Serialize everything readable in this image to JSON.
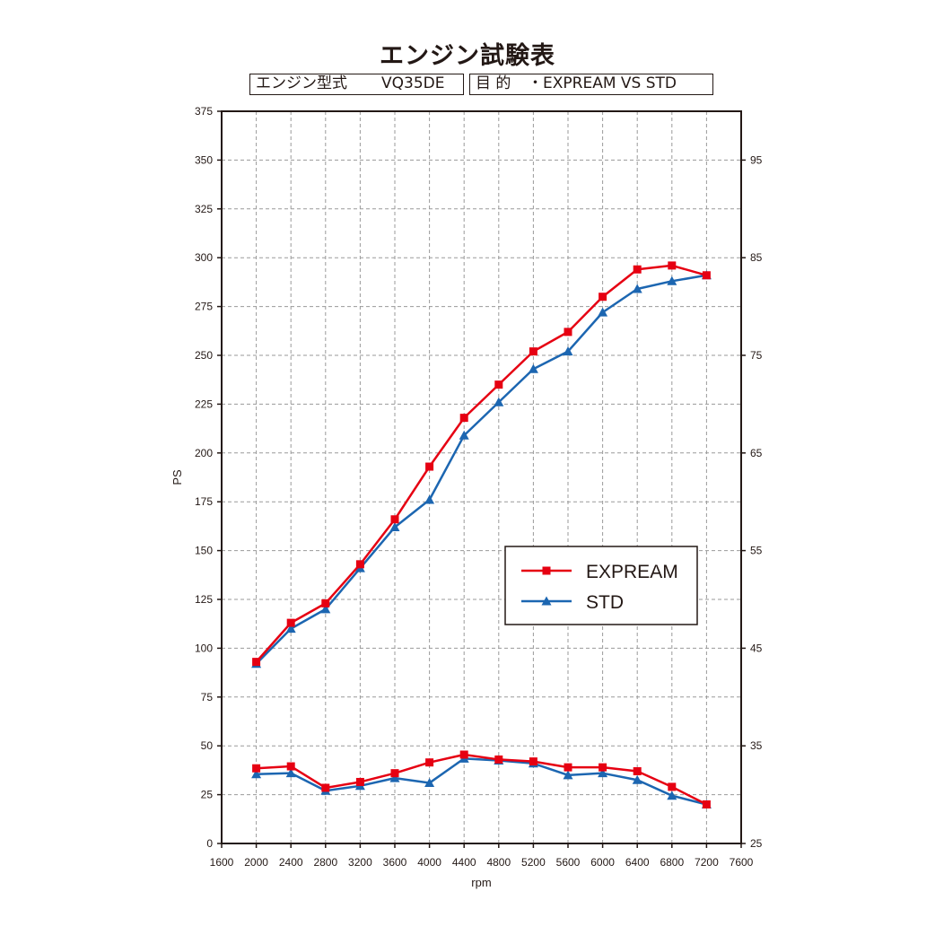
{
  "header": {
    "title": "エンジン試験表",
    "engine_label": "エンジン型式",
    "engine_value": "VQ35DE",
    "purpose_label": "目 的",
    "purpose_value": "・EXPREAM VS STD"
  },
  "colors": {
    "expream": "#e60012",
    "std": "#1c66b1",
    "grid": "#9a9a9a",
    "frame": "#231815"
  },
  "chart_data": {
    "type": "line",
    "xlabel": "rpm",
    "ylabel": "PS",
    "y2label": "",
    "xlim": [
      1600,
      7600
    ],
    "ylim": [
      0,
      375
    ],
    "y2lim": [
      25,
      100
    ],
    "grid": true,
    "legend_position": "right-middle",
    "x_ticks": [
      1600,
      2000,
      2400,
      2800,
      3200,
      3600,
      4000,
      4400,
      4800,
      5200,
      5600,
      6000,
      6400,
      6800,
      7200,
      7600
    ],
    "y_ticks": [
      0,
      25,
      50,
      75,
      100,
      125,
      150,
      175,
      200,
      225,
      250,
      275,
      300,
      325,
      350,
      375
    ],
    "y2_ticks": [
      25,
      35,
      45,
      55,
      65,
      75,
      85,
      95
    ],
    "x": [
      2000,
      2400,
      2800,
      3200,
      3600,
      4000,
      4400,
      4800,
      5200,
      5600,
      6000,
      6400,
      6800,
      7200
    ],
    "series": [
      {
        "name": "EXPREAM",
        "group": "power",
        "axis": "left",
        "marker": "square",
        "color": "#e60012",
        "values": [
          93,
          113,
          123,
          143,
          166,
          193,
          218,
          235,
          252,
          262,
          280,
          294,
          296,
          291
        ]
      },
      {
        "name": "STD",
        "group": "power",
        "axis": "left",
        "marker": "triangle",
        "color": "#1c66b1",
        "values": [
          92,
          110,
          120,
          141,
          162,
          176,
          209,
          226,
          243,
          252,
          272,
          284,
          288,
          291
        ]
      },
      {
        "name": "EXPREAM",
        "group": "torque",
        "axis": "right",
        "marker": "square",
        "color": "#e60012",
        "values": [
          32.7,
          32.9,
          30.7,
          31.3,
          32.2,
          33.3,
          34.1,
          33.6,
          33.4,
          32.8,
          32.8,
          32.4,
          30.8,
          29.0
        ]
      },
      {
        "name": "STD",
        "group": "torque",
        "axis": "right",
        "marker": "triangle",
        "color": "#1c66b1",
        "values": [
          32.1,
          32.2,
          30.4,
          30.9,
          31.7,
          31.2,
          33.7,
          33.5,
          33.2,
          32.0,
          32.2,
          31.5,
          29.9,
          29.0
        ]
      }
    ],
    "legend": [
      "EXPREAM",
      "STD"
    ]
  }
}
